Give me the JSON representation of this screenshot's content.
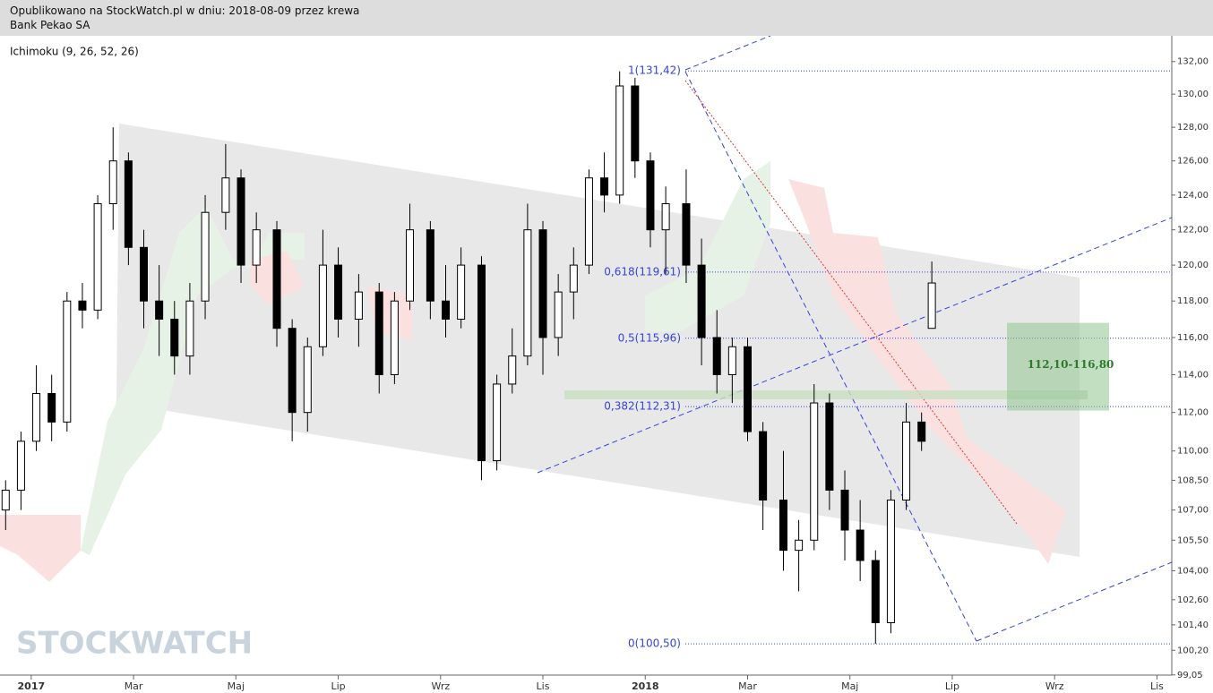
{
  "header": {
    "line1": "Opublikowano na StockWatch.pl w dniu: 2018-08-09 przez krewa",
    "line2": "Bank Pekao SA"
  },
  "watermark": "STOCKWATCH",
  "chart_data": {
    "type": "candlestick",
    "indicator": "Ichimoku (9, 26, 52, 26)",
    "log_scale": true,
    "xlim": [
      -0.61,
      22.29
    ],
    "ylim": [
      99.0,
      133.6
    ],
    "xticks": [
      {
        "value": 0,
        "label": "2017"
      },
      {
        "value": 2,
        "label": "Mar"
      },
      {
        "value": 4,
        "label": "Maj"
      },
      {
        "value": 6,
        "label": "Lip"
      },
      {
        "value": 8,
        "label": "Wrz"
      },
      {
        "value": 10,
        "label": "Lis"
      },
      {
        "value": 12,
        "label": "2018"
      },
      {
        "value": 14,
        "label": "Mar"
      },
      {
        "value": 16,
        "label": "Maj"
      },
      {
        "value": 18,
        "label": "Lip"
      },
      {
        "value": 20,
        "label": "Wrz"
      },
      {
        "value": 22,
        "label": "Lis"
      }
    ],
    "yticks": [
      {
        "value": 132,
        "label": "132,00"
      },
      {
        "value": 130,
        "label": "130,00"
      },
      {
        "value": 128,
        "label": "128,00"
      },
      {
        "value": 126,
        "label": "126,00"
      },
      {
        "value": 124,
        "label": "124,00"
      },
      {
        "value": 122,
        "label": "122,00"
      },
      {
        "value": 120,
        "label": "120,00"
      },
      {
        "value": 118,
        "label": "118,00"
      },
      {
        "value": 116,
        "label": "116,00"
      },
      {
        "value": 114,
        "label": "114,00"
      },
      {
        "value": 112,
        "label": "112,00"
      },
      {
        "value": 110,
        "label": "110,00"
      },
      {
        "value": 108.5,
        "label": "108,50"
      },
      {
        "value": 107,
        "label": "107,00"
      },
      {
        "value": 105.5,
        "label": "105,50"
      },
      {
        "value": 104,
        "label": "104,00"
      },
      {
        "value": 102.6,
        "label": "102,60"
      },
      {
        "value": 101.4,
        "label": "101,40"
      },
      {
        "value": 100.2,
        "label": "100,20"
      },
      {
        "value": 99.05,
        "label": "99,05"
      }
    ],
    "x": [
      -0.5,
      -0.2,
      0.1,
      0.4,
      0.7,
      1.0,
      1.3,
      1.6,
      1.9,
      2.2,
      2.5,
      2.8,
      3.1,
      3.4,
      3.8,
      4.1,
      4.4,
      4.8,
      5.1,
      5.4,
      5.7,
      6.0,
      6.4,
      6.8,
      7.1,
      7.4,
      7.8,
      8.1,
      8.4,
      8.8,
      9.1,
      9.4,
      9.7,
      10.0,
      10.3,
      10.6,
      10.9,
      11.2,
      11.5,
      11.8,
      12.1,
      12.4,
      12.8,
      13.1,
      13.4,
      13.7,
      14.0,
      14.3,
      14.7,
      15.0,
      15.3,
      15.6,
      15.9,
      16.2,
      16.5,
      16.8,
      17.1,
      17.4,
      17.6
    ],
    "open": [
      107,
      108,
      110.5,
      113,
      111.5,
      118,
      117.5,
      123.5,
      126,
      121,
      118,
      117,
      115,
      118,
      123,
      125,
      120,
      122,
      116.5,
      112,
      115.5,
      120,
      117,
      118.5,
      114,
      118,
      122,
      118,
      117,
      120,
      109.5,
      113.5,
      115,
      122,
      116,
      118.5,
      120,
      125,
      124,
      130.5,
      126,
      122,
      123.5,
      120,
      116,
      114,
      115.5,
      111,
      107.5,
      105,
      105.5,
      112.5,
      108,
      106,
      104.5,
      101.5,
      107.5,
      111.5,
      116.5
    ],
    "high": [
      108.5,
      111,
      114.5,
      114,
      118.5,
      119,
      124,
      128,
      126.5,
      122,
      120,
      118,
      119,
      124,
      127,
      125.5,
      123,
      122.5,
      117,
      116,
      122,
      121,
      119.5,
      119,
      118.5,
      123.5,
      122.5,
      120,
      121,
      120.5,
      114,
      116.5,
      123.5,
      122.5,
      119.5,
      121,
      125.5,
      126.5,
      131.4,
      131,
      126.5,
      124.5,
      125.5,
      121.5,
      117.5,
      116,
      116,
      111.5,
      110,
      106.5,
      113.5,
      113,
      109,
      107.5,
      105,
      108,
      112.5,
      112,
      120.2
    ],
    "low": [
      106,
      107,
      110,
      110.5,
      111,
      116.5,
      117,
      122,
      120,
      116.5,
      115,
      114,
      114,
      117,
      122,
      119,
      119,
      115.5,
      110.5,
      111,
      115,
      116,
      115.5,
      113,
      113.5,
      117.5,
      117,
      116,
      116.5,
      108.5,
      109,
      113,
      114.5,
      114,
      115,
      117,
      119.5,
      123,
      123.5,
      125,
      121,
      119.5,
      119,
      114.5,
      113,
      112.5,
      110.5,
      106,
      104,
      103,
      105,
      107,
      104.5,
      103.5,
      100.5,
      101,
      107,
      110,
      116.5
    ],
    "close": [
      108,
      110.5,
      113,
      111.5,
      118,
      117.5,
      123.5,
      126,
      121,
      118,
      117,
      115,
      118,
      123,
      125,
      120,
      122,
      116.5,
      112,
      115.5,
      120,
      117,
      118.5,
      114,
      118,
      122,
      118,
      117,
      120,
      109.5,
      113.5,
      115,
      122,
      116,
      118.5,
      120,
      125,
      124,
      130.5,
      126,
      122,
      123.5,
      120,
      116,
      114,
      115.5,
      111,
      107.5,
      105,
      105.5,
      112.5,
      108,
      106,
      104.5,
      101.5,
      107.5,
      111.5,
      110.5,
      119
    ],
    "fib_levels": [
      {
        "label": "1(131,42)",
        "value": 131.42
      },
      {
        "label": "0,618(119,61)",
        "value": 119.61
      },
      {
        "label": "0,5(115,96)",
        "value": 115.96
      },
      {
        "label": "0,382(112,31)",
        "value": 112.31
      },
      {
        "label": "0(100,50)",
        "value": 100.5
      }
    ],
    "zone": {
      "label": "112,10-116,80",
      "low": 112.1,
      "high": 116.8
    }
  }
}
